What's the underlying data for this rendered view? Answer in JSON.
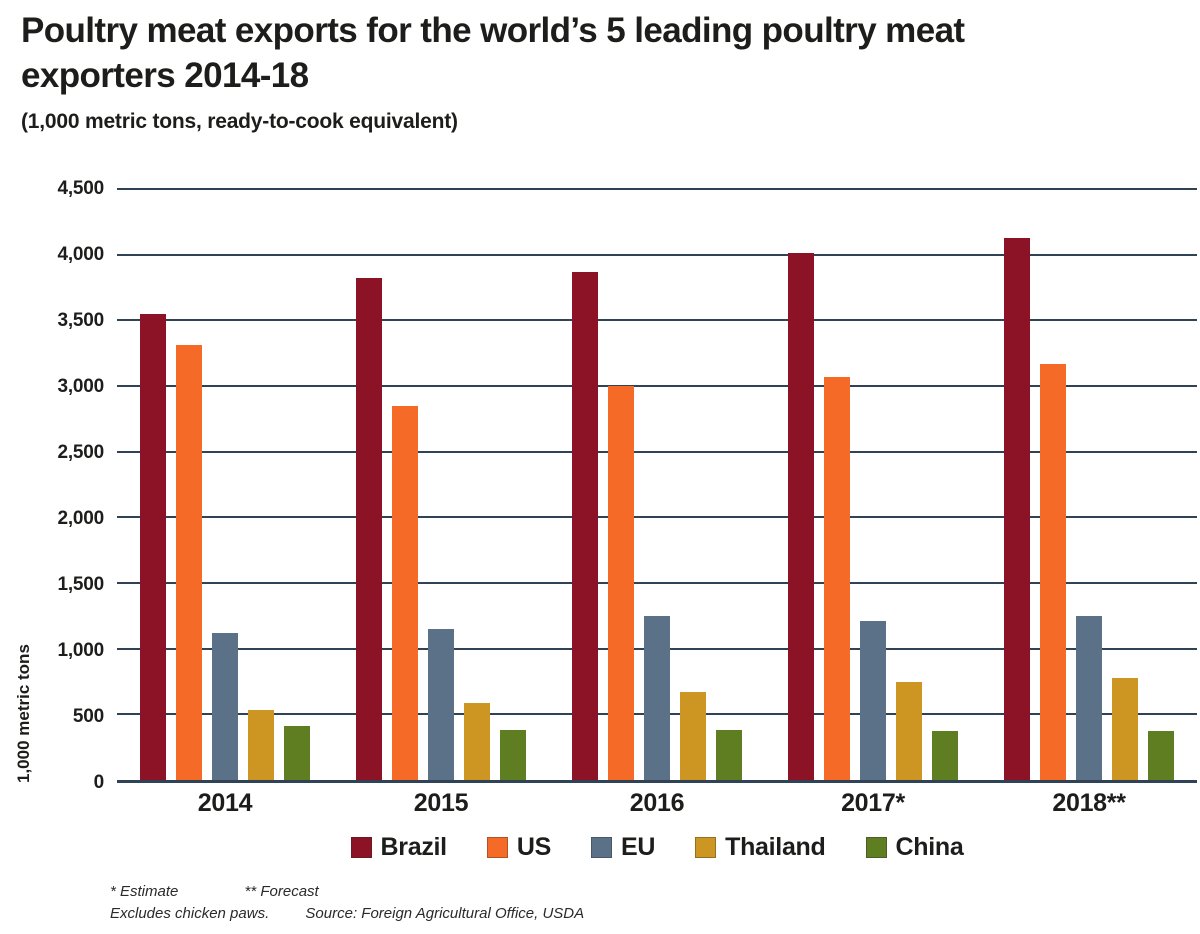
{
  "header": {
    "title_lines": [
      "Poultry meat exports for the world’s 5 leading poultry meat",
      "exporters 2014-18"
    ],
    "subtitle": "(1,000 metric tons, ready-to-cook equivalent)"
  },
  "chart_data": {
    "type": "bar",
    "title": "Poultry meat exports for the world’s 5 leading poultry meat exporters 2014-18",
    "subtitle": "(1,000 metric tons, ready-to-cook equivalent)",
    "xlabel": "",
    "ylabel": "1,000 metric tons",
    "ylim": [
      0,
      4500
    ],
    "ytick_interval": 500,
    "grid": true,
    "legend_position": "bottom",
    "yticks": [
      {
        "v": 4500,
        "label": "4,500"
      },
      {
        "v": 4000,
        "label": "4,000"
      },
      {
        "v": 3500,
        "label": "3,500"
      },
      {
        "v": 3000,
        "label": "3,000"
      },
      {
        "v": 2500,
        "label": "2,500"
      },
      {
        "v": 2000,
        "label": "2,000"
      },
      {
        "v": 1500,
        "label": "1,500"
      },
      {
        "v": 1000,
        "label": "1,000"
      },
      {
        "v": 500,
        "label": "500"
      },
      {
        "v": 0,
        "label": "0"
      }
    ],
    "categories": [
      "2014",
      "2015",
      "2016",
      "2017*",
      "2018**"
    ],
    "series": [
      {
        "name": "Brazil",
        "color": "#8b1325",
        "values": [
          3550,
          3820,
          3870,
          4010,
          4130
        ]
      },
      {
        "name": "US",
        "color": "#f46a26",
        "values": [
          3310,
          2850,
          3000,
          3070,
          3170
        ]
      },
      {
        "name": "EU",
        "color": "#5b7187",
        "values": [
          1120,
          1150,
          1250,
          1210,
          1250
        ]
      },
      {
        "name": "Thailand",
        "color": "#cd9623",
        "values": [
          530,
          590,
          670,
          750,
          780
        ]
      },
      {
        "name": "China",
        "color": "#5f7d21",
        "values": [
          410,
          380,
          380,
          375,
          375
        ]
      }
    ]
  },
  "footnotes": {
    "estimate": "* Estimate",
    "forecast": "** Forecast",
    "note": "Excludes chicken paws.",
    "source": "Source: Foreign Agricultural Office, USDA"
  },
  "colors": {
    "grid": "#2f4256",
    "axis": "#2f4256",
    "text": "#1d1d1b",
    "background": "#ffffff"
  }
}
